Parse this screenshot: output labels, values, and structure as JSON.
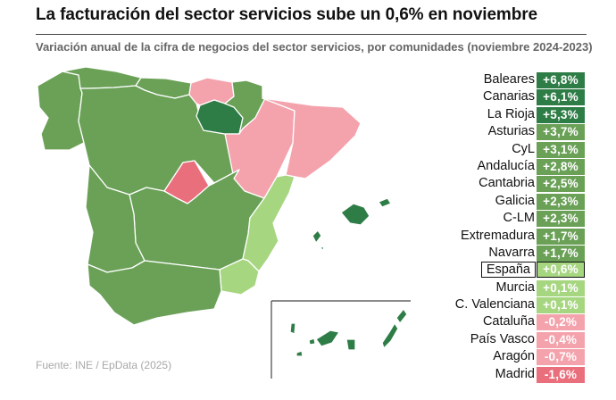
{
  "title": "La facturación del sector servicios sube un 0,6% en noviembre",
  "subtitle": "Variación anual de la cifra de negocios del sector servicios, por comunidades (noviembre 2024-2023)",
  "source": "Fuente: INE / EpData (2025)",
  "colors": {
    "dark_green": "#2e7d46",
    "mid_green": "#6aa157",
    "light_green": "#a7d681",
    "pink": "#f4a3ad",
    "red": "#ea6f7c"
  },
  "chart_data": {
    "type": "choropleth",
    "highlight": "España",
    "regions": [
      {
        "name": "Baleares",
        "label": "+6,8%",
        "value": 6.8
      },
      {
        "name": "Canarias",
        "label": "+6,1%",
        "value": 6.1
      },
      {
        "name": "La Rioja",
        "label": "+5,3%",
        "value": 5.3
      },
      {
        "name": "Asturias",
        "label": "+3,7%",
        "value": 3.7
      },
      {
        "name": "CyL",
        "label": "+3,1%",
        "value": 3.1
      },
      {
        "name": "Andalucía",
        "label": "+2,8%",
        "value": 2.8
      },
      {
        "name": "Cantabria",
        "label": "+2,5%",
        "value": 2.5
      },
      {
        "name": "Galicia",
        "label": "+2,3%",
        "value": 2.3
      },
      {
        "name": "C-LM",
        "label": "+2,3%",
        "value": 2.3
      },
      {
        "name": "Extremadura",
        "label": "+1,7%",
        "value": 1.7
      },
      {
        "name": "Navarra",
        "label": "+1,7%",
        "value": 1.7
      },
      {
        "name": "España",
        "label": "+0,6%",
        "value": 0.6
      },
      {
        "name": "Murcia",
        "label": "+0,1%",
        "value": 0.1
      },
      {
        "name": "C. Valenciana",
        "label": "+0,1%",
        "value": 0.1
      },
      {
        "name": "Cataluña",
        "label": "-0,2%",
        "value": -0.2
      },
      {
        "name": "País Vasco",
        "label": "-0,4%",
        "value": -0.4
      },
      {
        "name": "Aragón",
        "label": "-0,7%",
        "value": -0.7
      },
      {
        "name": "Madrid",
        "label": "-1,6%",
        "value": -1.6
      }
    ]
  }
}
